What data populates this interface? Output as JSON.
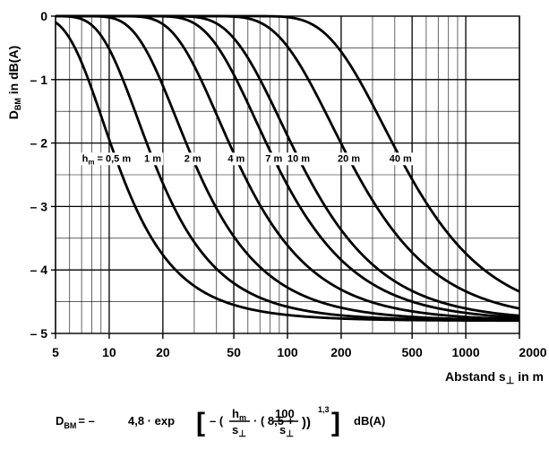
{
  "chart_data": {
    "type": "line",
    "xscale": "log",
    "xlim": [
      5,
      2000
    ],
    "ylim": [
      -5,
      0
    ],
    "x_ticks": [
      5,
      10,
      20,
      50,
      100,
      200,
      500,
      1000,
      2000
    ],
    "x_tick_labels": [
      "5",
      "10",
      "20",
      "50",
      "100",
      "200",
      "500",
      "1000",
      "2000"
    ],
    "y_ticks": [
      0,
      -1,
      -2,
      -3,
      -4,
      -5
    ],
    "y_tick_labels": [
      "0",
      "– 1",
      "– 2",
      "– 3",
      "– 4",
      "– 5"
    ],
    "ylabel_main": "D",
    "ylabel_sub": "BM",
    "ylabel_rest": "  in dB(A)",
    "xlabel_main": "Abstand s",
    "xlabel_sub": "⊥",
    "xlabel_rest": " in m",
    "grid": true,
    "series_label_prefix": "h",
    "series_label_prefix_sub": "m",
    "series_label_eq": " = ",
    "series": [
      {
        "name": "0,5 m",
        "hm": 0.5
      },
      {
        "name": "1 m",
        "hm": 1
      },
      {
        "name": "2 m",
        "hm": 2
      },
      {
        "name": "4 m",
        "hm": 4
      },
      {
        "name": "7 m",
        "hm": 7
      },
      {
        "name": "10 m",
        "hm": 10
      },
      {
        "name": "20 m",
        "hm": 20
      },
      {
        "name": "40 m",
        "hm": 40
      }
    ],
    "curve_formula": {
      "coefficient": -4.8,
      "constant": 8.5,
      "numerator": 100,
      "exponent": 1.3
    }
  },
  "formula": {
    "lhs_main": "D",
    "lhs_sub": "BM",
    "equals_minus": "= –",
    "coef": "4,8 · exp",
    "open_bracket": "[",
    "minus_paren": "– (",
    "h": "h",
    "h_sub": "m",
    "s": "s",
    "s_sub": "⊥",
    "dot_paren": "· ( 8,5 +",
    "num100": "100",
    "close_parens": "))",
    "exponent": "1,3",
    "close_bracket": "]",
    "unit": "dB(A)"
  }
}
